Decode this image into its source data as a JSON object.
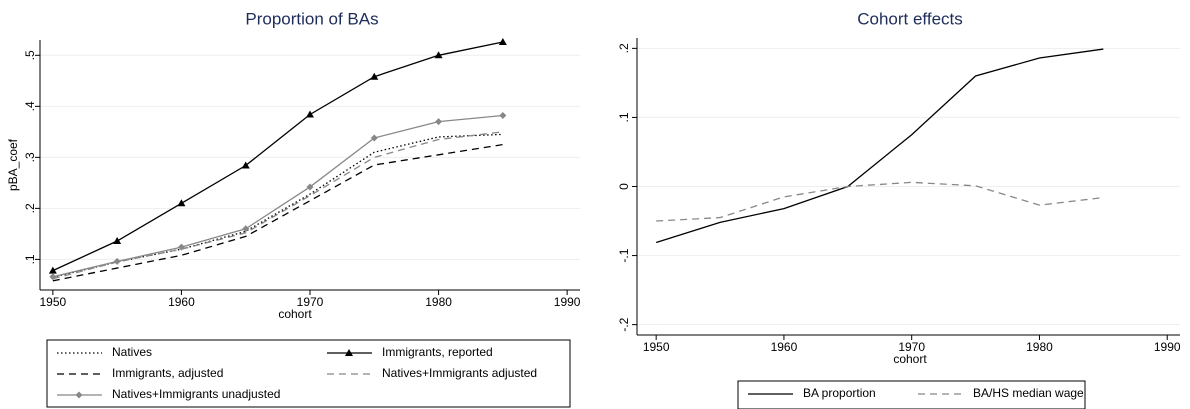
{
  "chart_data": [
    {
      "type": "line",
      "title": "Proportion of BAs",
      "x_label": "cohort",
      "y_label": "pBA_coef",
      "x": [
        1950,
        1955,
        1960,
        1965,
        1970,
        1975,
        1980,
        1985
      ],
      "xlim": [
        1949,
        1991
      ],
      "xticks": [
        1950,
        1960,
        1970,
        1980,
        1990
      ],
      "ylim": [
        0.04,
        0.53
      ],
      "yticks": [
        {
          "value": 0.1,
          "label": ".1"
        },
        {
          "value": 0.2,
          "label": ".2"
        },
        {
          "value": 0.3,
          "label": ".3"
        },
        {
          "value": 0.4,
          "label": ".4"
        },
        {
          "value": 0.5,
          "label": ".5"
        }
      ],
      "grid": true,
      "series": [
        {
          "name": "Natives",
          "color": "#000000",
          "dash": "dotted",
          "values": [
            0.065,
            0.095,
            0.12,
            0.155,
            0.228,
            0.31,
            0.34,
            0.345
          ]
        },
        {
          "name": "Immigrants, reported",
          "color": "#000000",
          "dash": "solid",
          "marker": "triangle",
          "values": [
            0.078,
            0.136,
            0.21,
            0.284,
            0.384,
            0.458,
            0.5,
            0.526
          ]
        },
        {
          "name": "Immigrants, adjusted",
          "color": "#000000",
          "dash": "dashed",
          "values": [
            0.058,
            0.083,
            0.108,
            0.145,
            0.215,
            0.285,
            0.305,
            0.325
          ]
        },
        {
          "name": "Natives+Immigrants adjusted",
          "color": "#888888",
          "dash": "dashed",
          "values": [
            0.062,
            0.095,
            0.12,
            0.152,
            0.225,
            0.3,
            0.335,
            0.35
          ]
        },
        {
          "name": "Natives+Immigrants unadjusted",
          "color": "#888888",
          "dash": "solid",
          "marker": "diamond",
          "values": [
            0.066,
            0.096,
            0.124,
            0.16,
            0.242,
            0.338,
            0.37,
            0.382
          ]
        }
      ]
    },
    {
      "type": "line",
      "title": "Cohort effects",
      "x_label": "cohort",
      "x": [
        1950,
        1955,
        1960,
        1965,
        1970,
        1975,
        1980,
        1985
      ],
      "xlim": [
        1948.5,
        1991
      ],
      "xticks": [
        1950,
        1960,
        1970,
        1980,
        1990
      ],
      "ylim": [
        -0.215,
        0.215
      ],
      "yticks": [
        {
          "value": -0.2,
          "label": "-.2"
        },
        {
          "value": -0.1,
          "label": "-.1"
        },
        0,
        {
          "value": 0.1,
          "label": ".1"
        },
        {
          "value": 0.2,
          "label": ".2"
        }
      ],
      "grid": true,
      "series": [
        {
          "name": "BA proportion",
          "color": "#000000",
          "dash": "solid",
          "values": [
            -0.081,
            -0.052,
            -0.032,
            0,
            0.075,
            0.16,
            0.186,
            0.199
          ]
        },
        {
          "name": "BA/HS median wage",
          "color": "#888888",
          "dash": "dashed",
          "values": [
            -0.05,
            -0.045,
            -0.015,
            0,
            0.006,
            0.001,
            -0.027,
            -0.016
          ]
        }
      ]
    }
  ]
}
